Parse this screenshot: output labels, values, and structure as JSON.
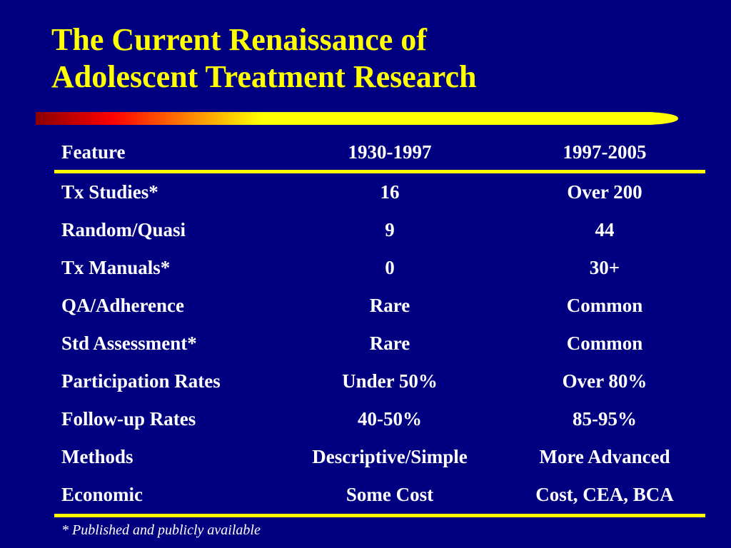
{
  "slide": {
    "title_line1": "The Current Renaissance of",
    "title_line2": "Adolescent Treatment Research"
  },
  "colors": {
    "background": "#000080",
    "accent": "#FFFF00",
    "text": "#FFFFFF",
    "bar_gradient_start": "#8B0000",
    "bar_gradient_mid": "#FF0000",
    "bar_gradient_end": "#FFFF00"
  },
  "table": {
    "headers": [
      "Feature",
      "1930-1997",
      "1997-2005"
    ],
    "rows": [
      [
        "Tx Studies*",
        "16",
        "Over 200"
      ],
      [
        "Random/Quasi",
        "9",
        "44"
      ],
      [
        "Tx Manuals*",
        "0",
        "30+"
      ],
      [
        "QA/Adherence",
        "Rare",
        "Common"
      ],
      [
        "Std Assessment*",
        "Rare",
        "Common"
      ],
      [
        "Participation Rates",
        "Under 50%",
        "Over 80%"
      ],
      [
        "Follow-up Rates",
        "40-50%",
        "85-95%"
      ],
      [
        "Methods",
        "Descriptive/Simple",
        "More Advanced"
      ],
      [
        "Economic",
        "Some Cost",
        "Cost, CEA, BCA"
      ]
    ]
  },
  "footnote": "* Published and publicly available"
}
